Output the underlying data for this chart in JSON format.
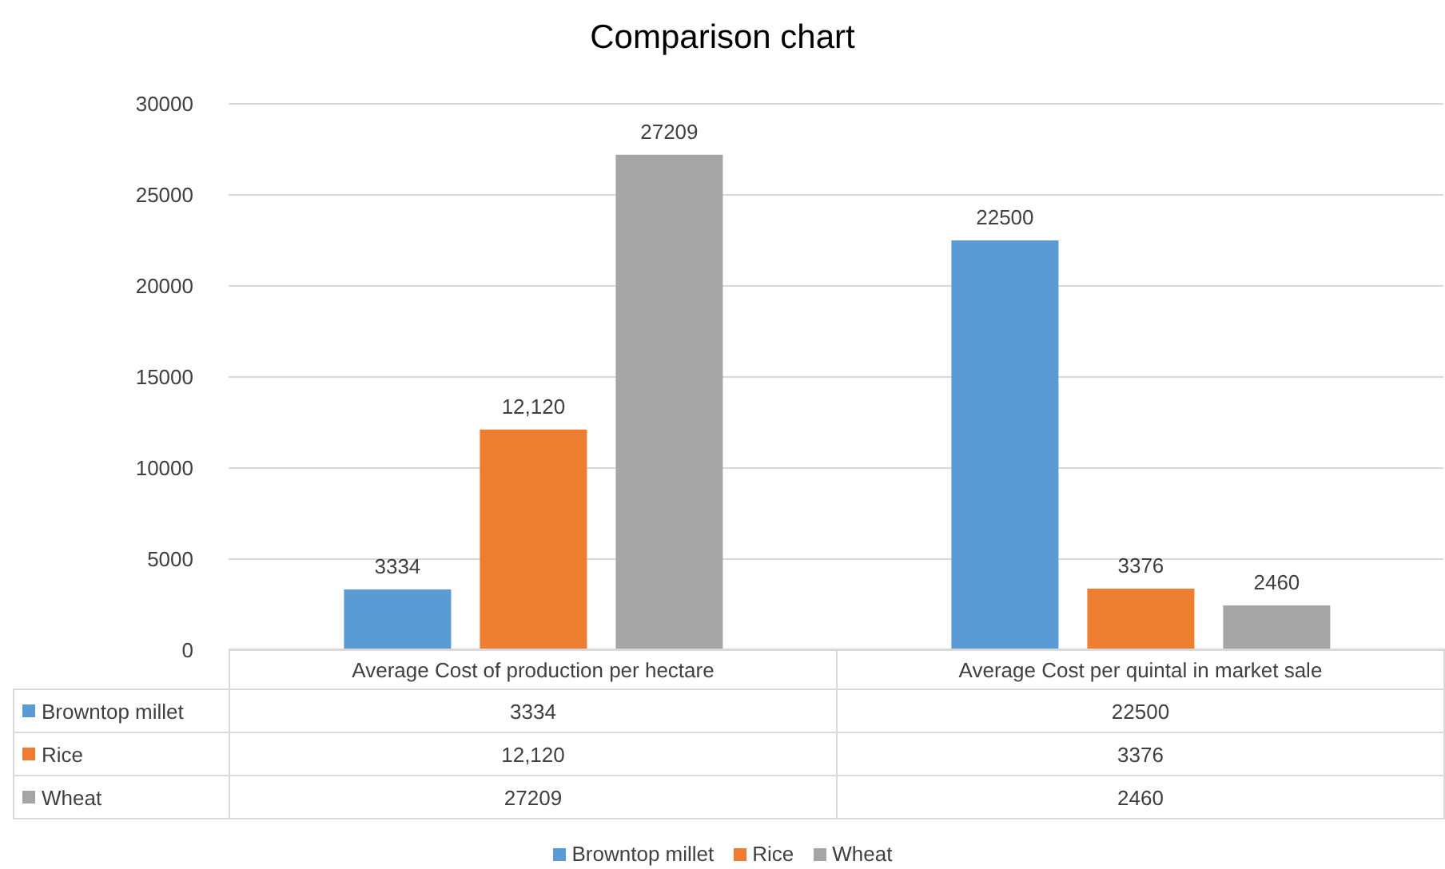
{
  "chart_data": {
    "type": "bar",
    "title": "Comparison chart",
    "categories": [
      "Average Cost of production per hectare",
      "Average Cost per quintal in market sale"
    ],
    "series": [
      {
        "name": "Browntop millet",
        "color": "#5b9bd5",
        "values": [
          3334,
          22500
        ],
        "value_labels": [
          "3334",
          "22500"
        ]
      },
      {
        "name": "Rice",
        "color": "#ed7d31",
        "values": [
          12120,
          3376
        ],
        "value_labels": [
          "12,120",
          "3376"
        ]
      },
      {
        "name": "Wheat",
        "color": "#a5a5a5",
        "values": [
          27209,
          2460
        ],
        "value_labels": [
          "27209",
          "2460"
        ]
      }
    ],
    "ylim": [
      0,
      30000
    ],
    "yticks": [
      0,
      5000,
      10000,
      15000,
      20000,
      25000,
      30000
    ],
    "grid": "y",
    "legend": "bottom"
  }
}
